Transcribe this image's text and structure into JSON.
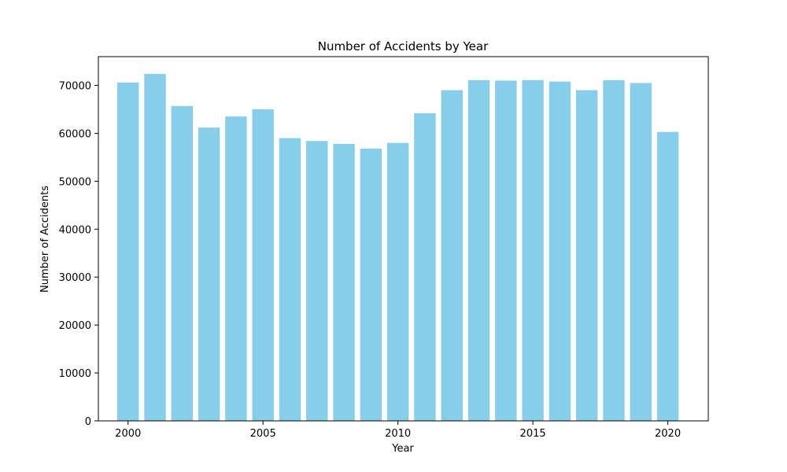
{
  "chart_data": {
    "type": "bar",
    "title": "Number of Accidents by Year",
    "xlabel": "Year",
    "ylabel": "Number of Accidents",
    "bar_color": "#87CEEB",
    "x": [
      2000,
      2001,
      2002,
      2003,
      2004,
      2005,
      2006,
      2007,
      2008,
      2009,
      2010,
      2011,
      2012,
      2013,
      2014,
      2015,
      2016,
      2017,
      2018,
      2019,
      2020
    ],
    "values": [
      70600,
      72400,
      65700,
      61200,
      63500,
      65000,
      59000,
      58400,
      57800,
      56800,
      58000,
      64200,
      69000,
      71100,
      71000,
      71100,
      70800,
      69000,
      71100,
      70500,
      60300
    ],
    "xlim": [
      1998.9,
      2021.5
    ],
    "ylim": [
      0,
      76000
    ],
    "xticks": [
      2000,
      2005,
      2010,
      2015,
      2020
    ],
    "yticks": [
      0,
      10000,
      20000,
      30000,
      40000,
      50000,
      60000,
      70000
    ],
    "grid": false,
    "legend": "none"
  }
}
